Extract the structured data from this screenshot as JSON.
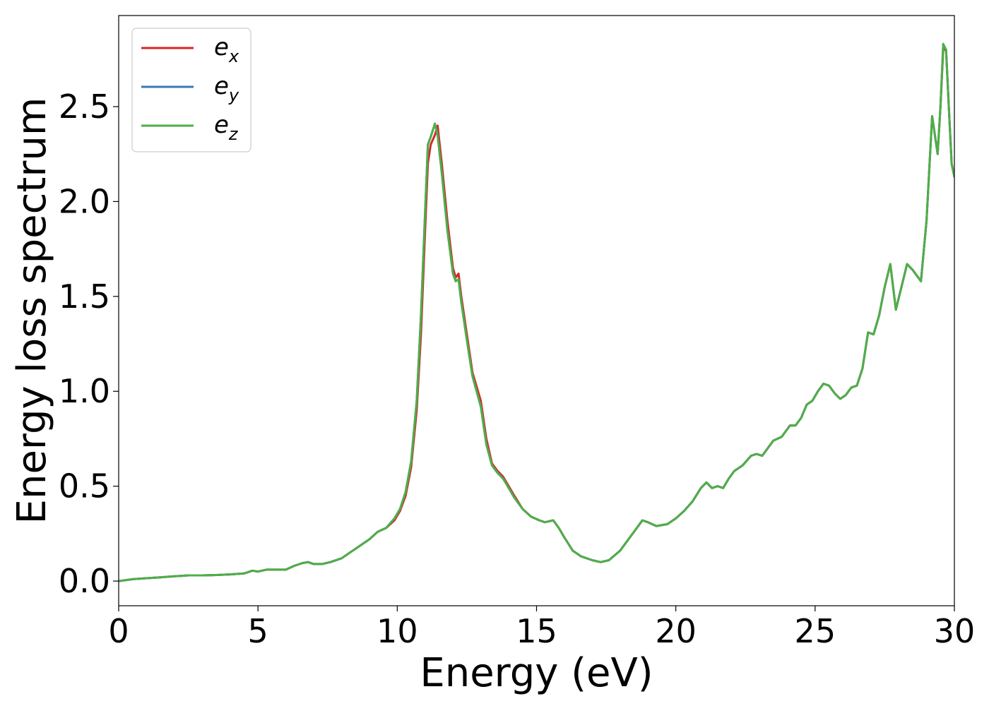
{
  "chart_data": {
    "type": "line",
    "title": "",
    "xlabel": "Energy (eV)",
    "ylabel": "Energy loss spectrum",
    "xlim": [
      0,
      30
    ],
    "ylim": [
      -0.13,
      2.98
    ],
    "x_ticks": [
      0,
      5,
      10,
      15,
      20,
      25,
      30
    ],
    "x_tick_labels": [
      "0",
      "5",
      "10",
      "15",
      "20",
      "25",
      "30"
    ],
    "y_ticks": [
      0.0,
      0.5,
      1.0,
      1.5,
      2.0,
      2.5
    ],
    "y_tick_labels": [
      "0.0",
      "0.5",
      "1.0",
      "1.5",
      "2.0",
      "2.5"
    ],
    "grid": false,
    "legend_position": "top-left",
    "legend": [
      {
        "base": "e",
        "sub": "x",
        "color": "#d62728"
      },
      {
        "base": "e",
        "sub": "y",
        "color": "#3a7bb0"
      },
      {
        "base": "e",
        "sub": "z",
        "color": "#4fae48"
      }
    ],
    "series": [
      {
        "name": "e_x",
        "color": "#d62728",
        "x": [
          0,
          0.5,
          1,
          1.5,
          2,
          2.5,
          3,
          3.5,
          4,
          4.5,
          4.8,
          5,
          5.3,
          5.6,
          6,
          6.3,
          6.6,
          6.8,
          7,
          7.3,
          7.6,
          8,
          8.3,
          8.6,
          9,
          9.3,
          9.6,
          9.9,
          10.1,
          10.3,
          10.5,
          10.7,
          10.85,
          11,
          11.1,
          11.2,
          11.35,
          11.45,
          11.6,
          11.8,
          12,
          12.1,
          12.2,
          12.3,
          12.5,
          12.7,
          13,
          13.2,
          13.4,
          13.6,
          13.8,
          14,
          14.2,
          14.5,
          14.8,
          15.1,
          15.3,
          15.6,
          15.8,
          16,
          16.3,
          16.6,
          17,
          17.3,
          17.6,
          18,
          18.3,
          18.6,
          18.8,
          19,
          19.3,
          19.7,
          20,
          20.3,
          20.6,
          20.9,
          21.1,
          21.3,
          21.5,
          21.7,
          21.9,
          22.1,
          22.4,
          22.7,
          22.9,
          23.1,
          23.3,
          23.5,
          23.8,
          24.1,
          24.3,
          24.5,
          24.7,
          24.9,
          25.1,
          25.3,
          25.5,
          25.7,
          25.9,
          26.1,
          26.3,
          26.5,
          26.7,
          26.9,
          27.1,
          27.3,
          27.5,
          27.7,
          27.9,
          28.1,
          28.3,
          28.5,
          28.8,
          29,
          29.2,
          29.4,
          29.5,
          29.6,
          29.7,
          29.8,
          29.9,
          30
        ],
        "values": [
          0,
          0.01,
          0.015,
          0.02,
          0.025,
          0.03,
          0.03,
          0.032,
          0.035,
          0.04,
          0.055,
          0.05,
          0.06,
          0.06,
          0.06,
          0.08,
          0.095,
          0.1,
          0.09,
          0.09,
          0.1,
          0.12,
          0.15,
          0.18,
          0.22,
          0.26,
          0.28,
          0.32,
          0.37,
          0.45,
          0.6,
          0.9,
          1.3,
          1.85,
          2.2,
          2.3,
          2.35,
          2.4,
          2.2,
          1.9,
          1.65,
          1.6,
          1.62,
          1.5,
          1.3,
          1.1,
          0.95,
          0.75,
          0.62,
          0.58,
          0.55,
          0.5,
          0.45,
          0.38,
          0.34,
          0.32,
          0.31,
          0.32,
          0.28,
          0.23,
          0.16,
          0.13,
          0.11,
          0.1,
          0.11,
          0.16,
          0.22,
          0.28,
          0.32,
          0.31,
          0.29,
          0.3,
          0.33,
          0.37,
          0.42,
          0.49,
          0.52,
          0.49,
          0.5,
          0.49,
          0.54,
          0.58,
          0.61,
          0.66,
          0.67,
          0.66,
          0.7,
          0.74,
          0.76,
          0.82,
          0.82,
          0.86,
          0.93,
          0.95,
          1.0,
          1.04,
          1.03,
          0.99,
          0.96,
          0.98,
          1.02,
          1.03,
          1.12,
          1.31,
          1.3,
          1.4,
          1.55,
          1.67,
          1.43,
          1.55,
          1.67,
          1.64,
          1.58,
          1.9,
          2.45,
          2.25,
          2.5,
          2.8,
          2.8,
          2.5,
          2.2,
          2.13
        ]
      },
      {
        "name": "e_y",
        "color": "#3a7bb0",
        "x": [
          0,
          0.5,
          1,
          1.5,
          2,
          2.5,
          3,
          3.5,
          4,
          4.5,
          4.8,
          5,
          5.3,
          5.6,
          6,
          6.3,
          6.6,
          6.8,
          7,
          7.3,
          7.6,
          8,
          8.3,
          8.6,
          9,
          9.3,
          9.6,
          9.9,
          10.1,
          10.3,
          10.5,
          10.7,
          10.85,
          11,
          11.1,
          11.2,
          11.35,
          11.45,
          11.6,
          11.8,
          12,
          12.1,
          12.2,
          12.3,
          12.5,
          12.7,
          13,
          13.2,
          13.4,
          13.6,
          13.8,
          14,
          14.2,
          14.5,
          14.8,
          15.1,
          15.3,
          15.6,
          15.8,
          16,
          16.3,
          16.6,
          17,
          17.3,
          17.6,
          18,
          18.3,
          18.6,
          18.8,
          19,
          19.3,
          19.7,
          20,
          20.3,
          20.6,
          20.9,
          21.1,
          21.3,
          21.5,
          21.7,
          21.9,
          22.1,
          22.4,
          22.7,
          22.9,
          23.1,
          23.3,
          23.5,
          23.8,
          24.1,
          24.3,
          24.5,
          24.7,
          24.9,
          25.1,
          25.3,
          25.5,
          25.7,
          25.9,
          26.1,
          26.3,
          26.5,
          26.7,
          26.9,
          27.1,
          27.3,
          27.5,
          27.7,
          27.9,
          28.1,
          28.3,
          28.5,
          28.8,
          29,
          29.2,
          29.4,
          29.5,
          29.6,
          29.7,
          29.8,
          29.9,
          30
        ],
        "values": [
          0,
          0.01,
          0.015,
          0.02,
          0.025,
          0.03,
          0.03,
          0.032,
          0.035,
          0.04,
          0.055,
          0.05,
          0.06,
          0.06,
          0.06,
          0.08,
          0.095,
          0.1,
          0.09,
          0.09,
          0.1,
          0.12,
          0.15,
          0.18,
          0.22,
          0.26,
          0.28,
          0.33,
          0.38,
          0.47,
          0.63,
          0.95,
          1.4,
          1.95,
          2.3,
          2.34,
          2.41,
          2.35,
          2.15,
          1.85,
          1.62,
          1.58,
          1.59,
          1.47,
          1.27,
          1.08,
          0.92,
          0.72,
          0.61,
          0.57,
          0.54,
          0.49,
          0.44,
          0.38,
          0.34,
          0.32,
          0.31,
          0.32,
          0.28,
          0.23,
          0.16,
          0.13,
          0.11,
          0.1,
          0.11,
          0.16,
          0.22,
          0.28,
          0.32,
          0.31,
          0.29,
          0.3,
          0.33,
          0.37,
          0.42,
          0.49,
          0.52,
          0.49,
          0.5,
          0.49,
          0.54,
          0.58,
          0.61,
          0.66,
          0.67,
          0.66,
          0.7,
          0.74,
          0.76,
          0.82,
          0.82,
          0.86,
          0.93,
          0.95,
          1.0,
          1.04,
          1.03,
          0.99,
          0.96,
          0.98,
          1.02,
          1.03,
          1.12,
          1.31,
          1.3,
          1.4,
          1.55,
          1.67,
          1.43,
          1.55,
          1.67,
          1.64,
          1.58,
          1.9,
          2.45,
          2.25,
          2.5,
          2.83,
          2.8,
          2.5,
          2.2,
          2.13
        ]
      },
      {
        "name": "e_z",
        "color": "#4fae48",
        "x": [
          0,
          0.5,
          1,
          1.5,
          2,
          2.5,
          3,
          3.5,
          4,
          4.5,
          4.8,
          5,
          5.3,
          5.6,
          6,
          6.3,
          6.6,
          6.8,
          7,
          7.3,
          7.6,
          8,
          8.3,
          8.6,
          9,
          9.3,
          9.6,
          9.9,
          10.1,
          10.3,
          10.5,
          10.7,
          10.85,
          11,
          11.1,
          11.2,
          11.35,
          11.45,
          11.6,
          11.8,
          12,
          12.1,
          12.2,
          12.3,
          12.5,
          12.7,
          13,
          13.2,
          13.4,
          13.6,
          13.8,
          14,
          14.2,
          14.5,
          14.8,
          15.1,
          15.3,
          15.6,
          15.8,
          16,
          16.3,
          16.6,
          17,
          17.3,
          17.6,
          18,
          18.3,
          18.6,
          18.8,
          19,
          19.3,
          19.7,
          20,
          20.3,
          20.6,
          20.9,
          21.1,
          21.3,
          21.5,
          21.7,
          21.9,
          22.1,
          22.4,
          22.7,
          22.9,
          23.1,
          23.3,
          23.5,
          23.8,
          24.1,
          24.3,
          24.5,
          24.7,
          24.9,
          25.1,
          25.3,
          25.5,
          25.7,
          25.9,
          26.1,
          26.3,
          26.5,
          26.7,
          26.9,
          27.1,
          27.3,
          27.5,
          27.7,
          27.9,
          28.1,
          28.3,
          28.5,
          28.8,
          29,
          29.2,
          29.4,
          29.5,
          29.6,
          29.7,
          29.8,
          29.9,
          30
        ],
        "values": [
          0,
          0.01,
          0.015,
          0.02,
          0.025,
          0.03,
          0.03,
          0.032,
          0.035,
          0.04,
          0.055,
          0.05,
          0.06,
          0.06,
          0.06,
          0.08,
          0.095,
          0.1,
          0.09,
          0.09,
          0.1,
          0.12,
          0.15,
          0.18,
          0.22,
          0.26,
          0.28,
          0.33,
          0.38,
          0.47,
          0.63,
          0.95,
          1.4,
          1.95,
          2.3,
          2.34,
          2.41,
          2.35,
          2.15,
          1.85,
          1.62,
          1.58,
          1.59,
          1.47,
          1.27,
          1.08,
          0.92,
          0.72,
          0.61,
          0.57,
          0.54,
          0.49,
          0.44,
          0.38,
          0.34,
          0.32,
          0.31,
          0.32,
          0.28,
          0.23,
          0.16,
          0.13,
          0.11,
          0.1,
          0.11,
          0.16,
          0.22,
          0.28,
          0.32,
          0.31,
          0.29,
          0.3,
          0.33,
          0.37,
          0.42,
          0.49,
          0.52,
          0.49,
          0.5,
          0.49,
          0.54,
          0.58,
          0.61,
          0.66,
          0.67,
          0.66,
          0.7,
          0.74,
          0.76,
          0.82,
          0.82,
          0.86,
          0.93,
          0.95,
          1.0,
          1.04,
          1.03,
          0.99,
          0.96,
          0.98,
          1.02,
          1.03,
          1.12,
          1.31,
          1.3,
          1.4,
          1.55,
          1.67,
          1.43,
          1.55,
          1.67,
          1.64,
          1.58,
          1.9,
          2.45,
          2.25,
          2.5,
          2.83,
          2.8,
          2.5,
          2.2,
          2.13
        ]
      }
    ]
  }
}
